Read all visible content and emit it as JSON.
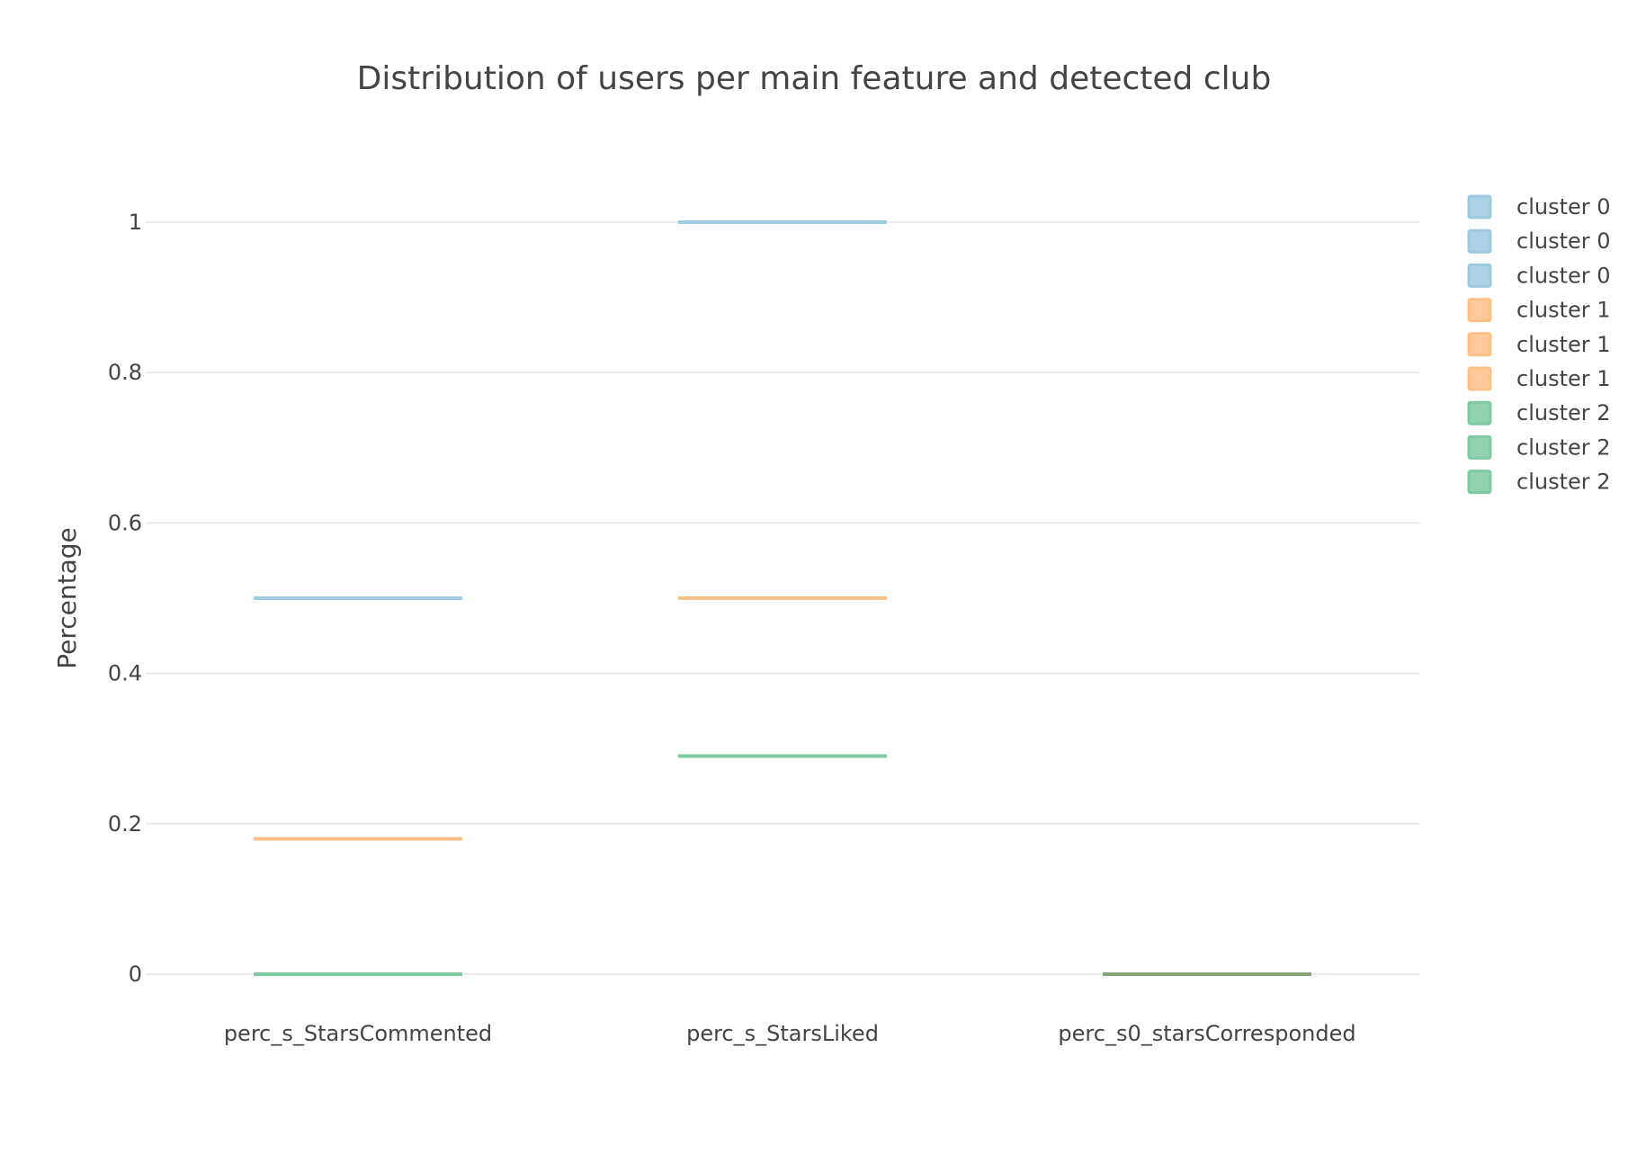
{
  "chart_data": {
    "type": "box",
    "title": "Distribution of users per main feature and detected club",
    "xlabel": "",
    "ylabel": "Percentage",
    "categories": [
      "perc_s_StarsCommented",
      "perc_s_StarsLiked",
      "perc_s0_starsCorresponded"
    ],
    "yticks": [
      0,
      0.2,
      0.4,
      0.6,
      0.8,
      1
    ],
    "ytick_labels": [
      "0",
      "0.2",
      "0.4",
      "0.6",
      "0.8",
      "1"
    ],
    "ylim": [
      -0.08,
      1.12
    ],
    "grid": true,
    "legend_position": "top-right",
    "series": [
      {
        "name": "cluster 0",
        "color": "#9ecae1",
        "values": [
          0.5,
          1.0,
          0
        ]
      },
      {
        "name": "cluster 0",
        "color": "#9ecae1",
        "values": []
      },
      {
        "name": "cluster 0",
        "color": "#9ecae1",
        "values": []
      },
      {
        "name": "cluster 1",
        "color": "#fdc086",
        "values": [
          0.18,
          0.5,
          0
        ]
      },
      {
        "name": "cluster 1",
        "color": "#fdc086",
        "values": []
      },
      {
        "name": "cluster 1",
        "color": "#fdc086",
        "values": []
      },
      {
        "name": "cluster 2",
        "color": "#7fc9a3",
        "values": [
          0,
          0.29,
          0
        ]
      },
      {
        "name": "cluster 2",
        "color": "#7fc9a3",
        "values": []
      },
      {
        "name": "cluster 2",
        "color": "#7fc9a3",
        "values": []
      }
    ],
    "overlap_color": "#84a47c"
  }
}
